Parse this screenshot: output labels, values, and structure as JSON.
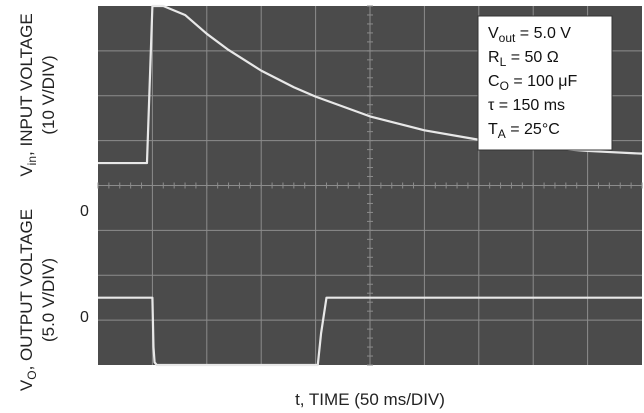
{
  "chart_data": {
    "type": "line",
    "title": "",
    "xlabel": "t, TIME (50 ms/DIV)",
    "ylabel_top": {
      "line1_main": "V",
      "line1_sub": "in",
      "line1_rest": ", INPUT VOLTAGE",
      "line2": "(10 V/DIV)"
    },
    "ylabel_bottom": {
      "line1_main": "V",
      "line1_sub": "O",
      "line1_rest": ", OUTPUT VOLTAGE",
      "line2": "(5.0 V/DIV)"
    },
    "x_unit": "ms",
    "x_per_div": 50,
    "x_divisions": 10,
    "xlim": [
      0,
      500
    ],
    "y_divisions": 8,
    "grid": true,
    "zero_labels": [
      "0",
      "0"
    ],
    "series": [
      {
        "channel": "input",
        "volts_per_div": 10,
        "zero_div_from_top": 3.5,
        "x": [
          0,
          45,
          50,
          60,
          80,
          100,
          120,
          150,
          180,
          200,
          250,
          300,
          350,
          400,
          450,
          500
        ],
        "y": [
          0,
          0,
          40,
          37.5,
          33,
          28.8,
          25.2,
          20.6,
          16.9,
          14.8,
          10.4,
          7.3,
          5.2,
          3.6,
          2.7,
          2.1
        ]
      },
      {
        "channel": "output",
        "volts_per_div": 5,
        "zero_div_from_top": 6.5,
        "x": [
          0,
          49,
          50,
          51,
          52,
          54,
          56,
          60,
          65,
          75,
          200,
          202,
          205,
          210,
          400,
          500
        ],
        "y": [
          0,
          0,
          0,
          -5.5,
          -7.2,
          -8.3,
          -8.6,
          -8.8,
          -8.9,
          -9,
          -9,
          -8,
          -4,
          0,
          0,
          0
        ]
      }
    ],
    "legend": {
      "position": "top-right",
      "lines": [
        {
          "main": "V",
          "sub": "out",
          "rest": " = 5.0 V"
        },
        {
          "main": "R",
          "sub": "L",
          "rest": " = 50 Ω"
        },
        {
          "main": "C",
          "sub": "O",
          "rest": " = 100 μF"
        },
        {
          "main": "τ = 150 ms",
          "sub": "",
          "rest": ""
        },
        {
          "main": "T",
          "sub": "A",
          "rest": " = 25°C"
        }
      ]
    },
    "colors": {
      "screen": "#4b4b4b",
      "grid": "#8c8c8c",
      "trace": "#e8e8e8",
      "legend_bg": "#ffffff"
    }
  }
}
